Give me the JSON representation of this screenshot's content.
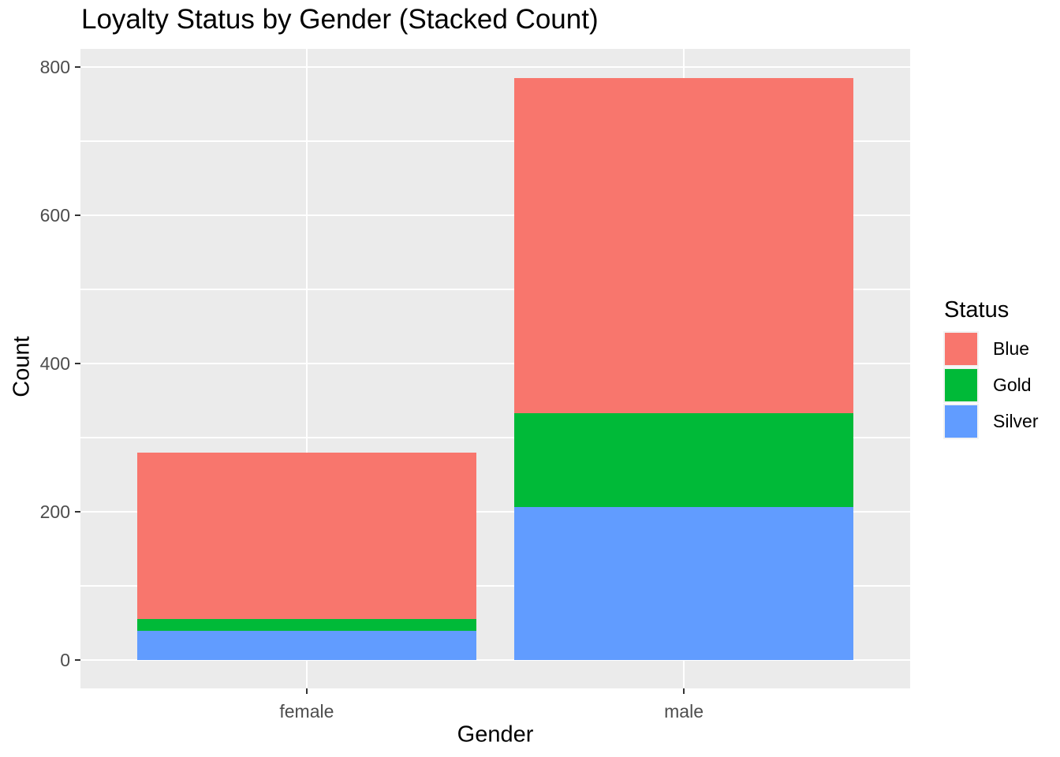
{
  "chart_data": {
    "type": "bar",
    "stacked": true,
    "title": "Loyalty Status by Gender (Stacked Count)",
    "xlabel": "Gender",
    "ylabel": "Count",
    "categories": [
      "female",
      "male"
    ],
    "series": [
      {
        "name": "Silver",
        "color": "#619CFF",
        "values": [
          39,
          206
        ]
      },
      {
        "name": "Gold",
        "color": "#00BA38",
        "values": [
          16,
          127
        ]
      },
      {
        "name": "Blue",
        "color": "#F8766D",
        "values": [
          225,
          452
        ]
      }
    ],
    "stack_order_bottom_to_top": [
      "Silver",
      "Gold",
      "Blue"
    ],
    "totals": [
      280,
      785
    ],
    "y_axis": {
      "ticks": [
        0,
        200,
        400,
        600,
        800
      ],
      "minor_ticks": [
        100,
        300,
        500,
        700
      ],
      "range_shown": [
        0,
        824
      ]
    },
    "x_axis": {
      "tick_labels": [
        "female",
        "male"
      ]
    },
    "legend": {
      "title": "Status",
      "position": "right",
      "entries": [
        {
          "label": "Blue",
          "color": "#F8766D"
        },
        {
          "label": "Gold",
          "color": "#00BA38"
        },
        {
          "label": "Silver",
          "color": "#619CFF"
        }
      ]
    },
    "style": {
      "panel_background": "#EBEBEB",
      "gridline_color": "#FFFFFF",
      "axis_text_color": "#4D4D4D",
      "tick_mark_color": "#333333",
      "legend_key_background": "#F2F2F2",
      "grid": true
    }
  }
}
